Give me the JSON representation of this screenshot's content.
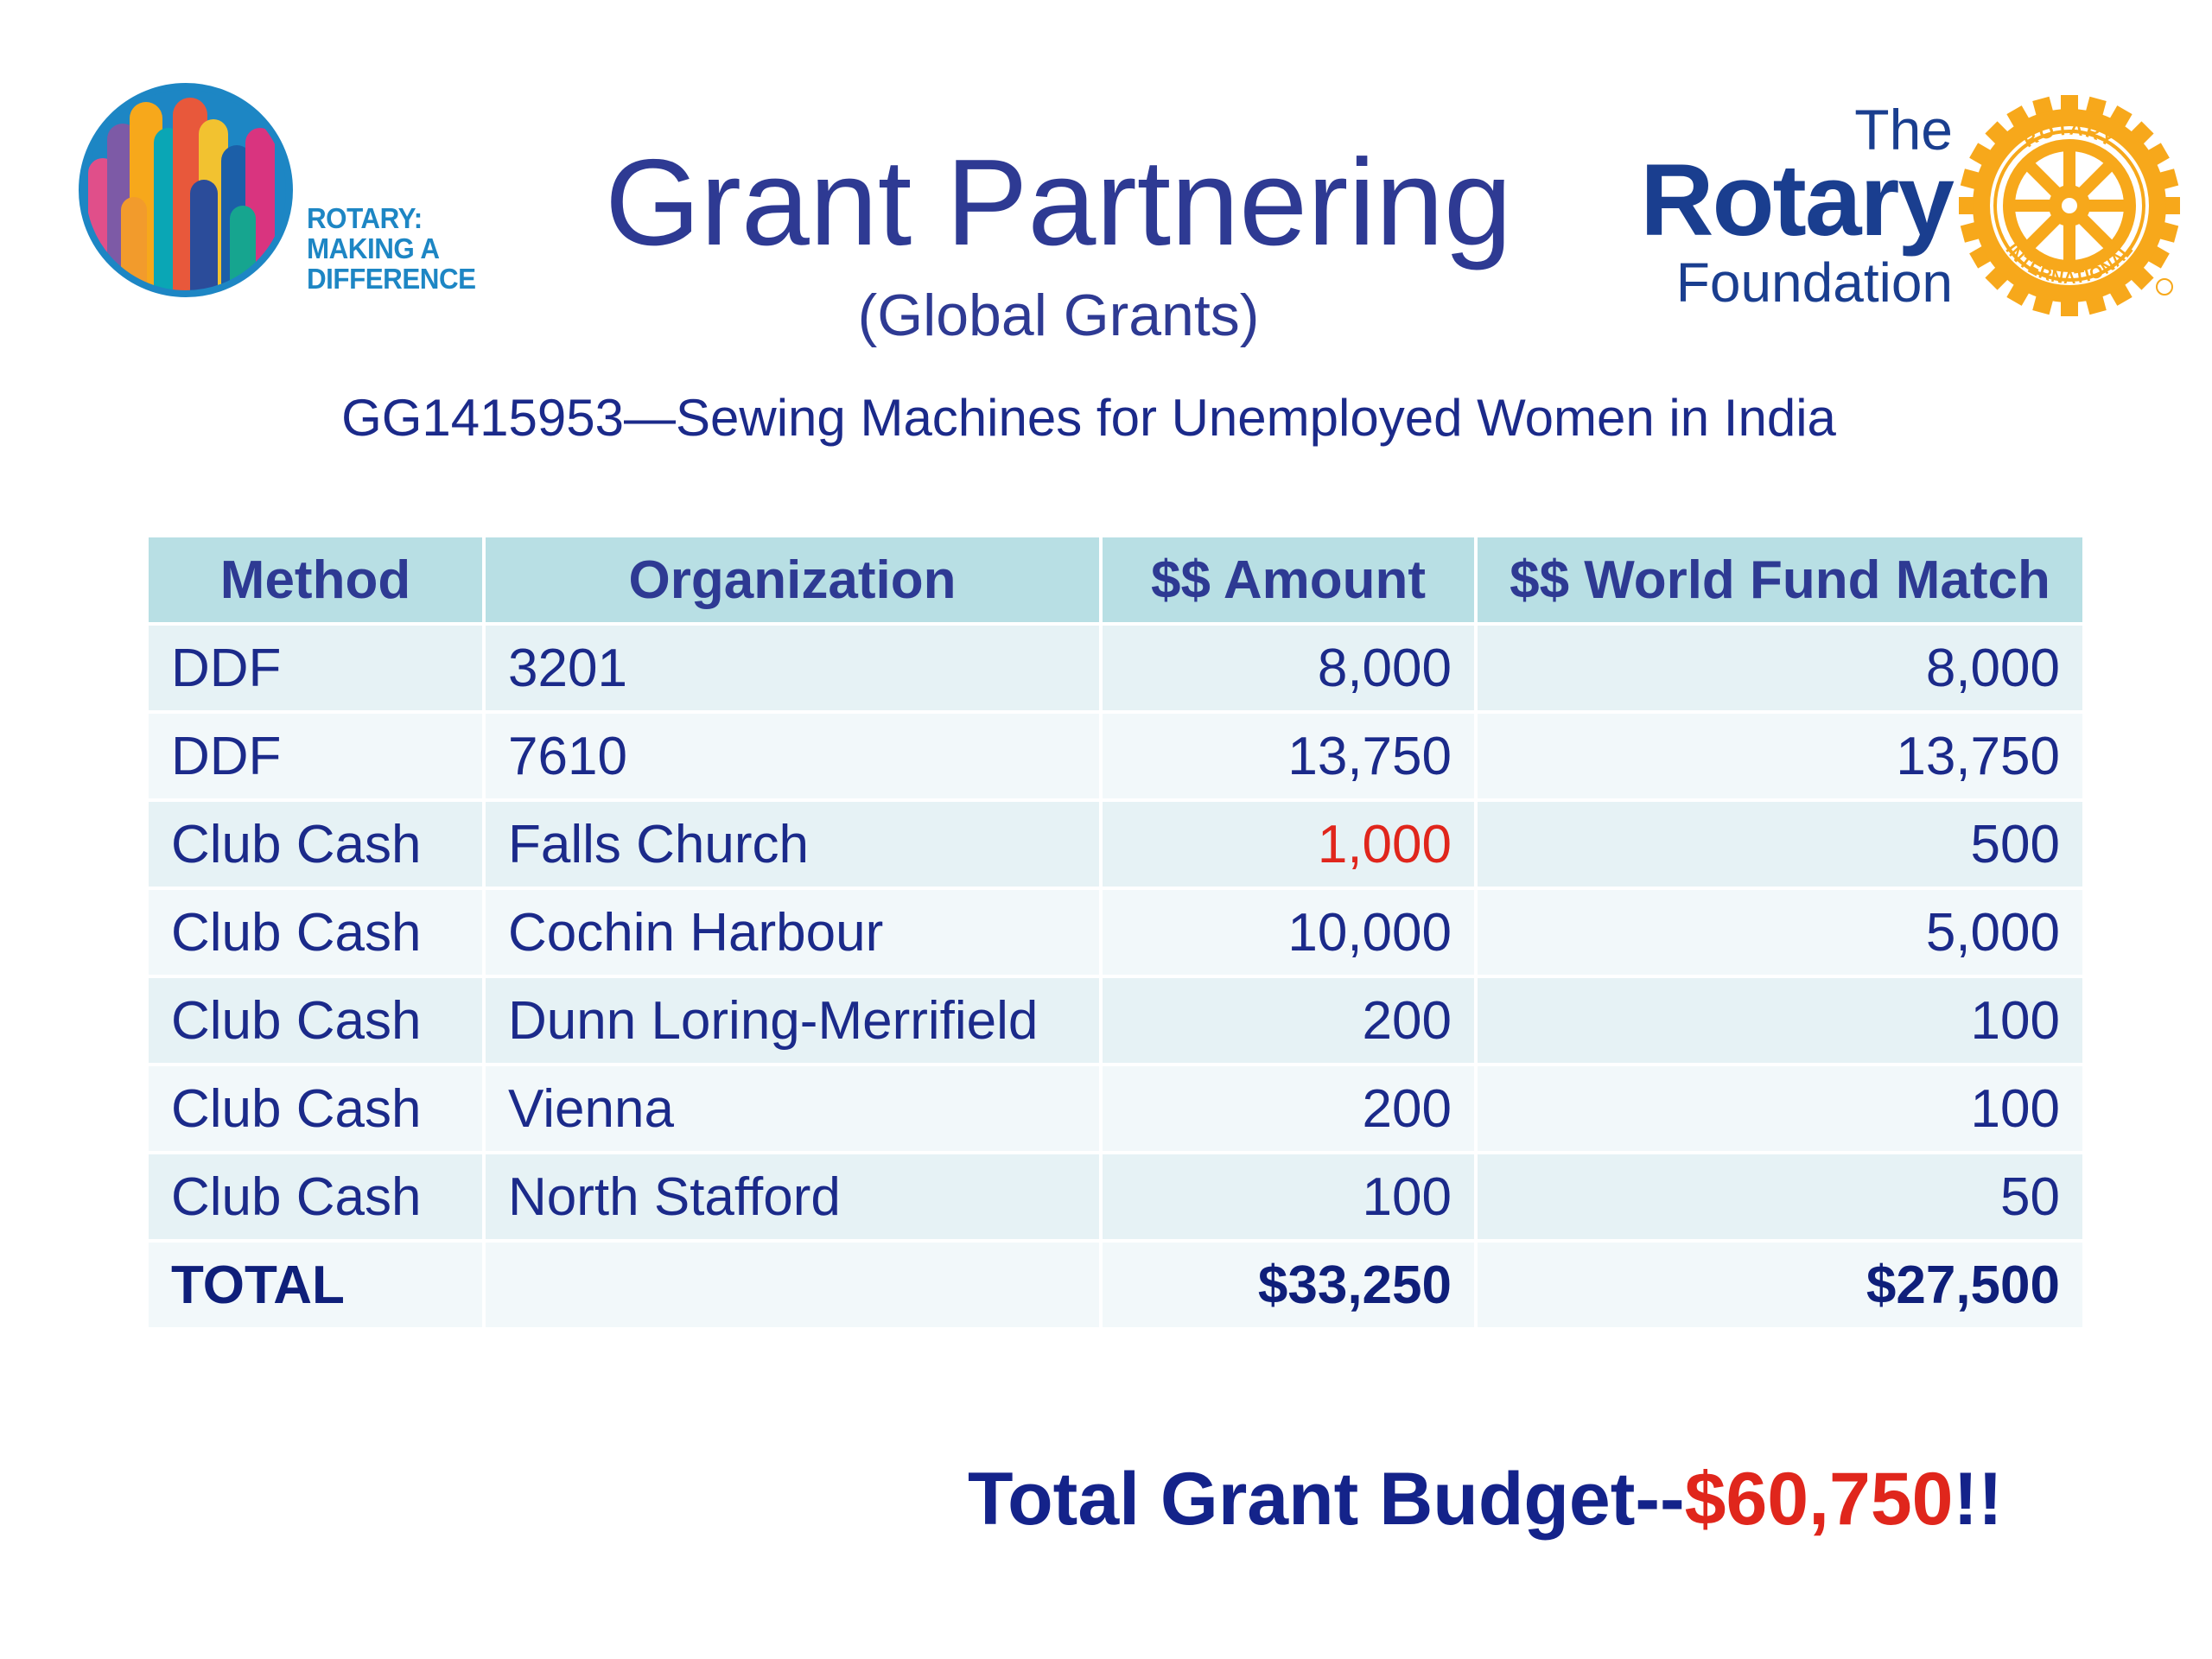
{
  "logo_left": {
    "lines": [
      "ROTARY:",
      "MAKING A",
      "DIFFERENCE"
    ]
  },
  "header": {
    "title": "Grant Partnering",
    "subtitle": "(Global Grants)",
    "grant_line": "GG1415953—Sewing Machines for Unemployed Women in India"
  },
  "foundation_logo": {
    "the": "The",
    "rotary": "Rotary",
    "foundation": "Foundation",
    "seal_top": "ROTARY",
    "seal_bottom": "INTERNATIONAL"
  },
  "table": {
    "headers": [
      "Method",
      "Organization",
      "$$ Amount",
      "$$ World Fund Match"
    ],
    "rows": [
      [
        "DDF",
        "3201",
        "8,000",
        "8,000"
      ],
      [
        "DDF",
        "7610",
        "13,750",
        "13,750"
      ],
      [
        "Club Cash",
        "Falls Church",
        "1,000",
        "500"
      ],
      [
        "Club Cash",
        "Cochin Harbour",
        "10,000",
        "5,000"
      ],
      [
        "Club Cash",
        "Dunn Loring-Merrifield",
        "200",
        "100"
      ],
      [
        "Club Cash",
        "Vienna",
        "200",
        "100"
      ],
      [
        "Club Cash",
        "North Stafford",
        "100",
        "50"
      ]
    ],
    "total": [
      "TOTAL",
      "",
      "$33,250",
      "$27,500"
    ]
  },
  "footer": {
    "budget_label": "Total Grant Budget--",
    "budget_amount": "$60,750",
    "budget_suffix": "!!"
  },
  "colors": {
    "title_blue": "#2e3a93",
    "header_fill": "#b8dfe4",
    "row_fill_a": "#e6f2f5",
    "row_fill_b": "#f2f8fa",
    "highlight_red": "#e0261c",
    "rotary_gold": "#f7a81b"
  }
}
